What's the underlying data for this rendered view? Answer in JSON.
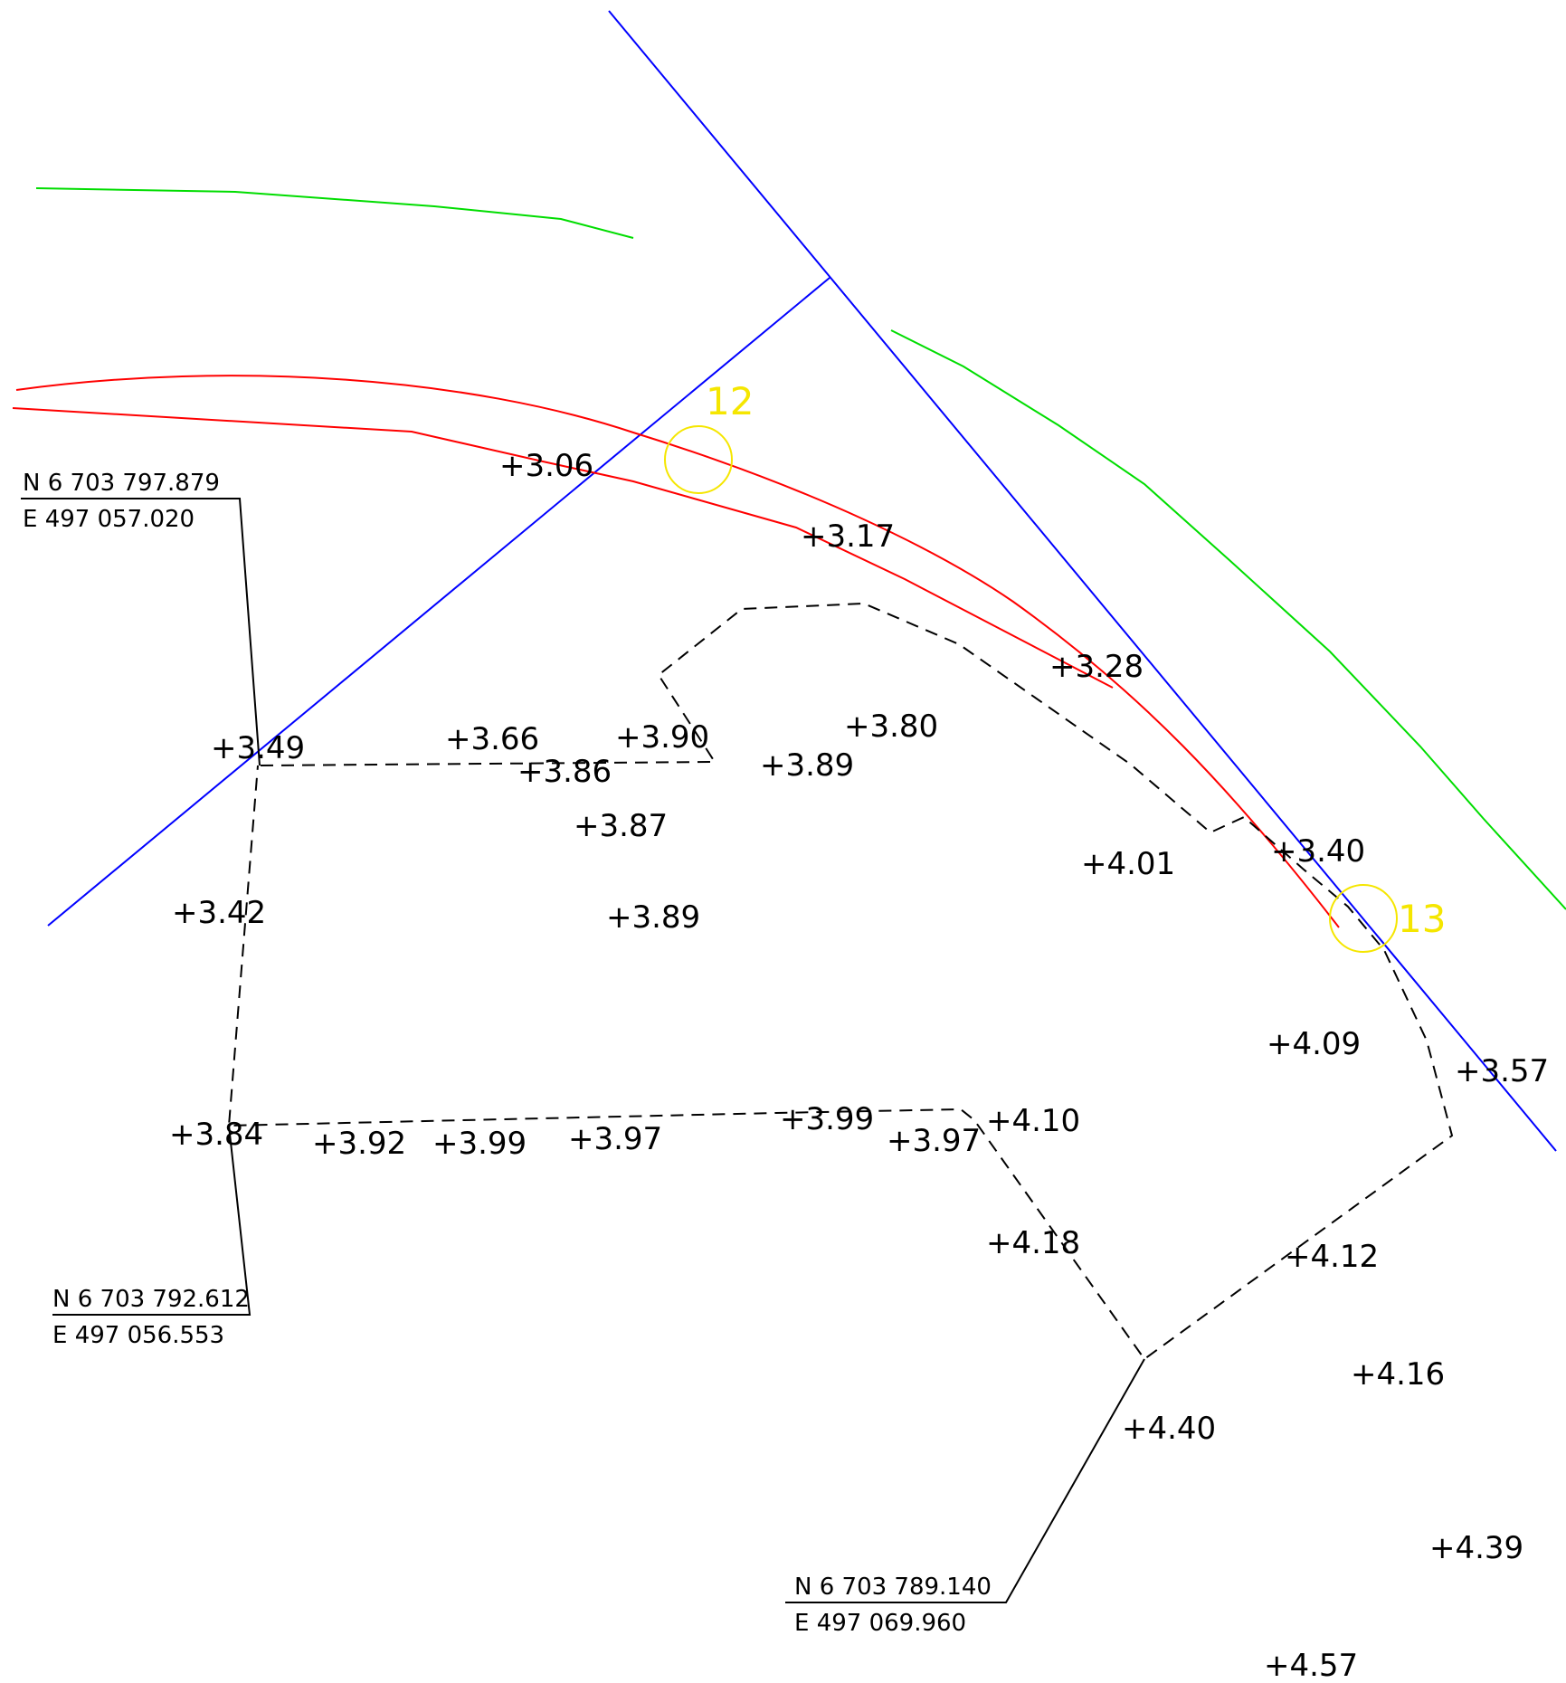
{
  "colors": {
    "background": "#ffffff",
    "ink": "#000000",
    "blue_line": "#0000ff",
    "red_line": "#ff0000",
    "green_line": "#00dd00",
    "marker": "#f5e600"
  },
  "markers": [
    {
      "id": "12",
      "label": "12"
    },
    {
      "id": "13",
      "label": "13"
    }
  ],
  "coordinate_labels": [
    {
      "id": "top-left",
      "north": "N 6 703 797.879",
      "east": "E 497 057.020"
    },
    {
      "id": "bottom-left",
      "north": "N 6 703 792.612",
      "east": "E 497 056.553"
    },
    {
      "id": "bottom-center",
      "north": "N 6 703 789.140",
      "east": "E 497 069.960"
    }
  ],
  "elevations": [
    "+3.06",
    "+3.17",
    "+3.28",
    "+3.40",
    "+3.49",
    "+3.66",
    "+3.90",
    "+3.86",
    "+3.80",
    "+3.89",
    "+3.87",
    "+4.01",
    "+3.42",
    "+3.89",
    "+4.09",
    "+3.57",
    "+3.84",
    "+3.92",
    "+3.99",
    "+3.97",
    "+3.99",
    "+3.97",
    "+4.10",
    "+4.18",
    "+4.12",
    "+4.16",
    "+4.40",
    "+4.39",
    "+4.57"
  ]
}
